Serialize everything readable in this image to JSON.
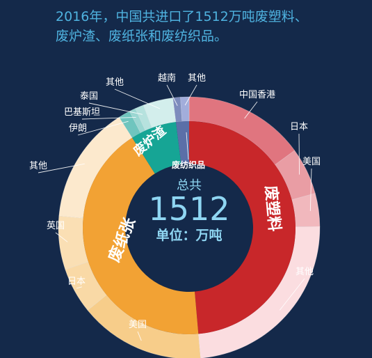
{
  "headline": {
    "line1": "2016年，中国共进口了1512万吨废塑料、",
    "line2": "废炉渣、废纸张和废纺织品。"
  },
  "center": {
    "top_label": "总共",
    "total": "1512",
    "unit": "单位：万吨"
  },
  "chart_data": {
    "type": "pie",
    "total": 1512,
    "inner_ring": [
      {
        "name": "废塑料",
        "value": 735,
        "color": "#c8272a"
      },
      {
        "name": "废纸张",
        "value": 641,
        "color": "#f2a234"
      },
      {
        "name": "废炉渣",
        "value": 106,
        "color": "#16a595"
      },
      {
        "name": "废纺织品",
        "value": 30,
        "color": "#5b6fa8"
      }
    ],
    "outer_ring": [
      {
        "parent": "废塑料",
        "name": "中国香港",
        "value": 226,
        "color": "#e0757f"
      },
      {
        "parent": "废塑料",
        "name": "日本",
        "value": 88,
        "color": "#e99da4"
      },
      {
        "parent": "废塑料",
        "name": "美国",
        "value": 62,
        "color": "#f1b8bd"
      },
      {
        "parent": "废塑料",
        "name": "其他",
        "value": 359,
        "color": "#fbdde0"
      },
      {
        "parent": "废纸张",
        "name": "美国",
        "value": 235,
        "color": "#f7cd8a"
      },
      {
        "parent": "废纸张",
        "name": "日本",
        "value": 86,
        "color": "#f9d9a6"
      },
      {
        "parent": "废纸张",
        "name": "英国",
        "value": 100,
        "color": "#fadfb4"
      },
      {
        "parent": "废纸张",
        "name": "其他",
        "value": 220,
        "color": "#fce9cd"
      },
      {
        "parent": "废炉渣",
        "name": "伊朗",
        "value": 22,
        "color": "#6fc5be"
      },
      {
        "parent": "废炉渣",
        "name": "巴基斯坦",
        "value": 12,
        "color": "#9bd7d2"
      },
      {
        "parent": "废炉渣",
        "name": "泰国",
        "value": 16,
        "color": "#b6e2de"
      },
      {
        "parent": "废炉渣",
        "name": "其他",
        "value": 56,
        "color": "#d3eeec"
      },
      {
        "parent": "废纺织品",
        "name": "越南",
        "value": 14,
        "color": "#7d8cbd"
      },
      {
        "parent": "废纺织品",
        "name": "其他",
        "value": 16,
        "color": "#a2addb"
      }
    ]
  }
}
